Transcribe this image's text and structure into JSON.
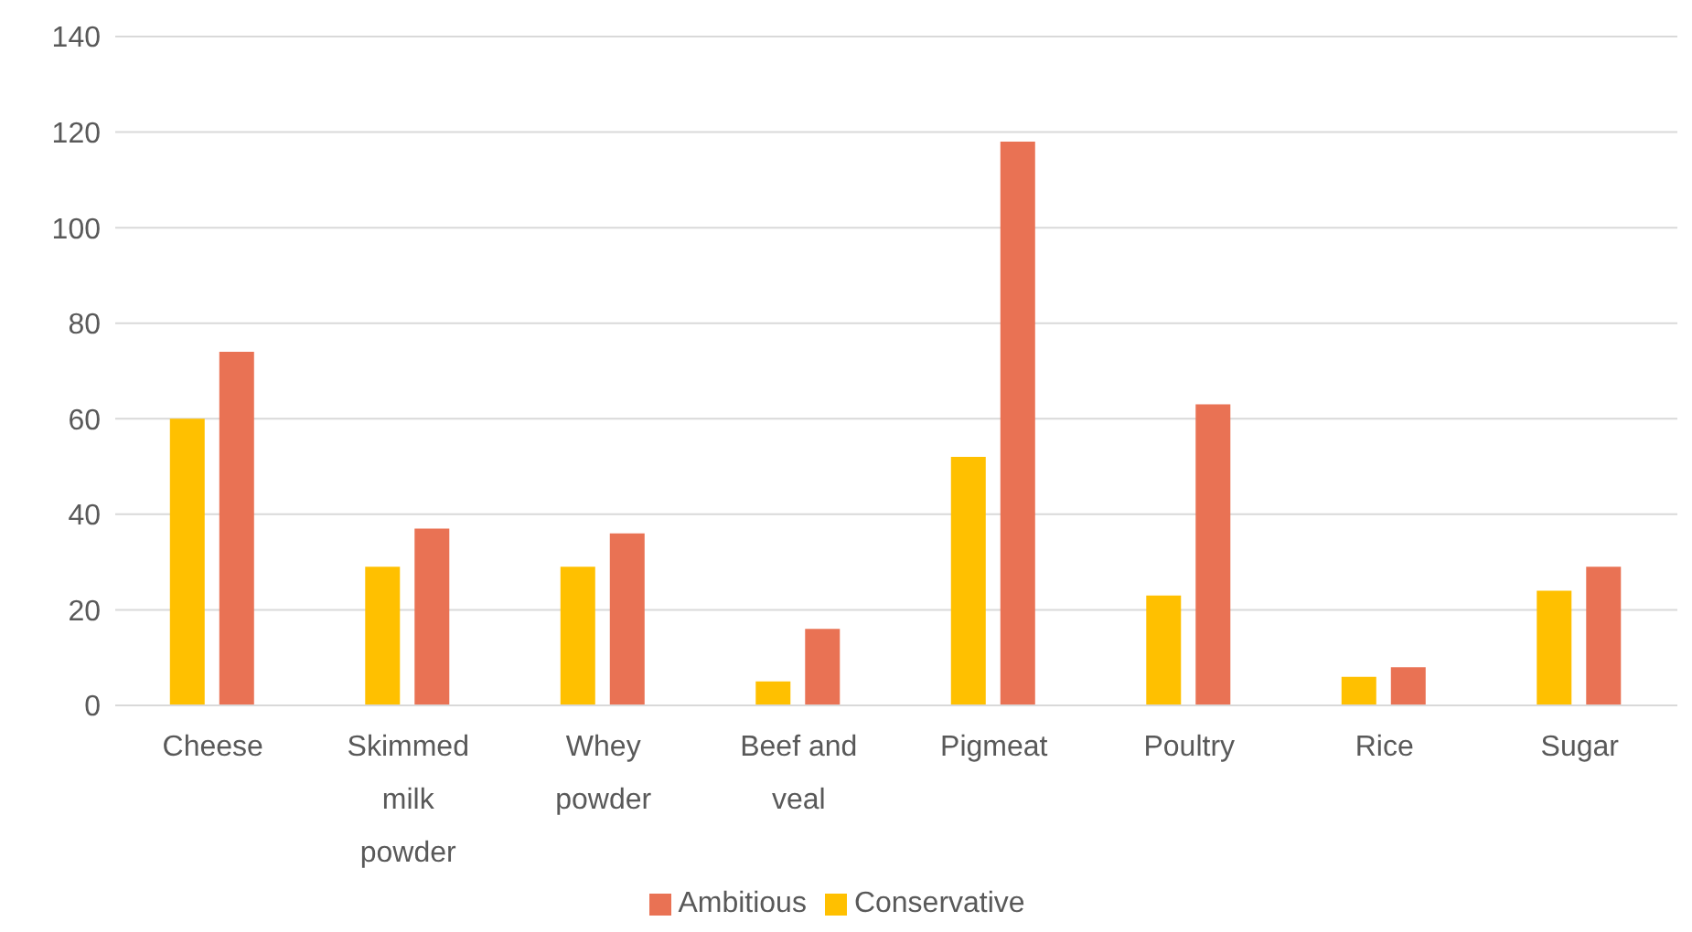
{
  "chart_data": {
    "type": "bar",
    "categories": [
      "Cheese",
      "Skimmed milk powder",
      "Whey powder",
      "Beef and veal",
      "Pigmeat",
      "Poultry",
      "Rice",
      "Sugar"
    ],
    "series": [
      {
        "name": "Conservative",
        "color": "#ffc000",
        "values": [
          60,
          29,
          29,
          5,
          52,
          23,
          6,
          24
        ]
      },
      {
        "name": "Ambitious",
        "color": "#e97254",
        "values": [
          74,
          37,
          36,
          16,
          118,
          63,
          8,
          29
        ]
      }
    ],
    "ylim": [
      0,
      140
    ],
    "yticks": [
      0,
      20,
      40,
      60,
      80,
      100,
      120,
      140
    ],
    "grid": "y",
    "legend": "bottom"
  }
}
